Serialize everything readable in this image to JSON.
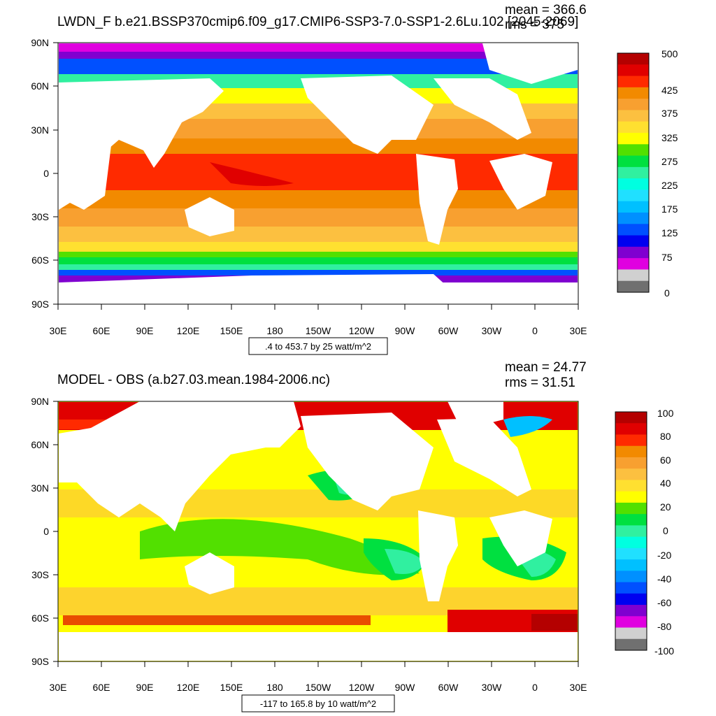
{
  "panels": [
    {
      "title": "LWDN_F b.e21.BSSP370cmip6.f09_g17.CMIP6-SSP3-7.0-SSP1-2.6Lu.102 [2045-2069]",
      "mean_label": "mean = 366.6",
      "rms_label": "rms = 375",
      "range_label": ".4 to 453.7 by 25 watt/m^2",
      "colorbar_labels": [
        "500",
        "425",
        "375",
        "325",
        "275",
        "225",
        "175",
        "125",
        "75",
        "0"
      ],
      "colorbar_colors": [
        "#b40000",
        "#e00000",
        "#ff2a00",
        "#f28a00",
        "#f8a030",
        "#fcc040",
        "#ffe030",
        "#ffff00",
        "#52e000",
        "#00e040",
        "#30f0a0",
        "#00ffe0",
        "#20e0ff",
        "#00c0ff",
        "#0090ff",
        "#0050ff",
        "#0000f0",
        "#8000d0",
        "#e000e0",
        "#d0d0d0",
        "#707070"
      ]
    },
    {
      "title": "MODEL - OBS (a.b27.03.mean.1984-2006.nc)",
      "mean_label": "mean = 24.77",
      "rms_label": "rms = 31.51",
      "range_label": "-117 to 165.8 by 10 watt/m^2",
      "colorbar_labels": [
        "100",
        "80",
        "60",
        "40",
        "20",
        "0",
        "-20",
        "-40",
        "-60",
        "-80",
        "-100"
      ],
      "colorbar_colors": [
        "#b40000",
        "#e00000",
        "#ff2a00",
        "#f28a00",
        "#f8a030",
        "#fcc040",
        "#ffe030",
        "#ffff00",
        "#52e000",
        "#00e040",
        "#30f0a0",
        "#00ffe0",
        "#20e0ff",
        "#00c0ff",
        "#0090ff",
        "#0050ff",
        "#0000f0",
        "#8000d0",
        "#e000e0",
        "#d0d0d0",
        "#707070"
      ]
    }
  ],
  "lat_labels": [
    "90N",
    "60N",
    "30N",
    "0",
    "30S",
    "60S",
    "90S"
  ],
  "lon_labels": [
    "30E",
    "60E",
    "90E",
    "120E",
    "150E",
    "180",
    "150W",
    "120W",
    "90W",
    "60W",
    "30W",
    "0",
    "30E"
  ]
}
